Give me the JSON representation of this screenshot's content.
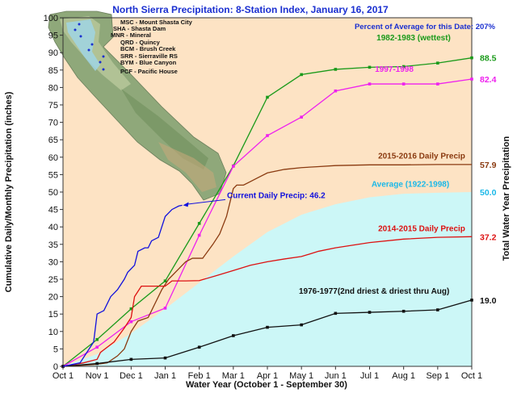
{
  "chart_data": {
    "type": "line",
    "title": "North Sierra Precipitation: 8-Station Index, January 16, 2017",
    "note": "Percent of Average for this Date: 207%",
    "xlabel": "Water Year (October 1 - September 30)",
    "ylabel": "Cumulative Daily/Monthly Precipitation (inches)",
    "ylabel_right": "Total Water Year Precipitation",
    "ylim": [
      0,
      100
    ],
    "y_ticks": [
      0,
      5,
      10,
      15,
      20,
      25,
      30,
      35,
      40,
      45,
      50,
      55,
      60,
      65,
      70,
      75,
      80,
      85,
      90,
      95,
      100
    ],
    "x_ticks": [
      "Oct 1",
      "Nov 1",
      "Dec 1",
      "Jan 1",
      "Feb 1",
      "Mar 1",
      "Apr 1",
      "May 1",
      "Jun 1",
      "Jul 1",
      "Aug 1",
      "Sep 1",
      "Oct 1"
    ],
    "grid": false,
    "map_stations": [
      "MSC - Mount Shasta City",
      "SHA - Shasta Dam",
      "MNR - Mineral",
      "QRD - Quincy",
      "BCM - Brush Creek",
      "SRR - Sierraville RS",
      "BYM - Blue Canyon",
      "PCF - Pacific House"
    ],
    "series": [
      {
        "name": "Average (1922-1998)",
        "end_label": "50.0",
        "color": "#ccf7f7",
        "label_color": "#1ab8e8",
        "style": "area",
        "x": [
          0,
          1,
          2,
          3,
          4,
          5,
          6,
          7,
          8,
          9,
          10,
          11,
          12
        ],
        "values": [
          0,
          3.5,
          9.5,
          16.5,
          24,
          31.5,
          38.5,
          43.5,
          46.5,
          48.5,
          49.5,
          49.8,
          50.0
        ]
      },
      {
        "name": "1982-1983 (wettest)",
        "end_label": "88.5",
        "color": "#1a9a1a",
        "style": "line-markers",
        "x": [
          0,
          1,
          2,
          3,
          4,
          5,
          6,
          7,
          8,
          9,
          10,
          11,
          12
        ],
        "values": [
          0,
          7.7,
          16.5,
          24.5,
          41,
          57.5,
          77.2,
          83.7,
          85.2,
          85.8,
          86,
          87,
          88.5
        ]
      },
      {
        "name": "1997-1998",
        "end_label": "82.4",
        "color": "#ee22ee",
        "style": "line-markers",
        "x": [
          0,
          1,
          2,
          3,
          4,
          5,
          6,
          7,
          8,
          9,
          10,
          11,
          12
        ],
        "values": [
          0,
          5.5,
          12.8,
          16.7,
          37.6,
          57.4,
          66.2,
          71.5,
          79,
          81,
          81,
          81,
          82.4
        ]
      },
      {
        "name": "2015-2016 Daily Precip",
        "end_label": "57.9",
        "color": "#8a3a10",
        "style": "line",
        "x": [
          0,
          0.9,
          1.3,
          1.6,
          1.8,
          2.0,
          2.2,
          2.5,
          2.7,
          2.9,
          3.1,
          3.4,
          3.6,
          3.8,
          4.1,
          4.4,
          4.6,
          4.8,
          5.0,
          5.1,
          5.3,
          5.5,
          5.7,
          6.0,
          6.5,
          7.0,
          7.5,
          8.0,
          9.0,
          10.0,
          11.0,
          12.0
        ],
        "values": [
          0,
          0.5,
          1,
          3,
          5,
          10,
          13,
          14,
          18,
          22,
          25,
          28,
          30,
          31,
          31,
          35,
          38,
          43,
          51,
          52,
          52,
          53,
          54,
          55.5,
          56.5,
          57,
          57.3,
          57.6,
          57.8,
          57.8,
          57.9,
          57.9
        ]
      },
      {
        "name": "2014-2015 Daily Precip",
        "end_label": "37.2",
        "color": "#dd1111",
        "style": "line",
        "x": [
          0,
          0.6,
          1.0,
          1.1,
          1.5,
          1.8,
          2.0,
          2.1,
          2.3,
          2.5,
          2.7,
          3.0,
          3.2,
          3.6,
          4.0,
          4.5,
          5.0,
          5.5,
          6.0,
          6.5,
          7.0,
          7.5,
          8.0,
          9.0,
          10.0,
          11.0,
          12.0
        ],
        "values": [
          0,
          1,
          2,
          4,
          7,
          11,
          14,
          20,
          23,
          23,
          23,
          23,
          24.5,
          24.5,
          24.6,
          26,
          27.5,
          29,
          30,
          30.8,
          31.5,
          33,
          34,
          35.5,
          36.5,
          37,
          37.2
        ]
      },
      {
        "name": "1976-1977(2nd driest & driest thru Aug)",
        "end_label": "19.0",
        "color": "#111111",
        "style": "line-markers",
        "x": [
          0,
          1,
          2,
          3,
          4,
          5,
          6,
          7,
          8,
          9,
          10,
          11,
          12
        ],
        "values": [
          0,
          0.8,
          2,
          2.4,
          5.5,
          8.8,
          11.2,
          11.9,
          15.2,
          15.5,
          15.8,
          16.2,
          19.0
        ]
      },
      {
        "name": "Current Daily Precip: 46.2",
        "end_label": "",
        "color": "#1111dd",
        "style": "line",
        "x": [
          0,
          0.5,
          0.9,
          1.0,
          1.2,
          1.4,
          1.5,
          1.6,
          1.8,
          1.9,
          2.1,
          2.2,
          2.4,
          2.5,
          2.6,
          2.8,
          2.9,
          3.0,
          3.2,
          3.4,
          3.5
        ],
        "values": [
          0,
          1,
          7,
          15,
          16,
          20,
          21,
          22,
          25,
          27,
          29,
          33,
          34,
          34,
          36,
          37,
          40,
          43,
          45,
          46,
          46.2
        ]
      }
    ]
  }
}
